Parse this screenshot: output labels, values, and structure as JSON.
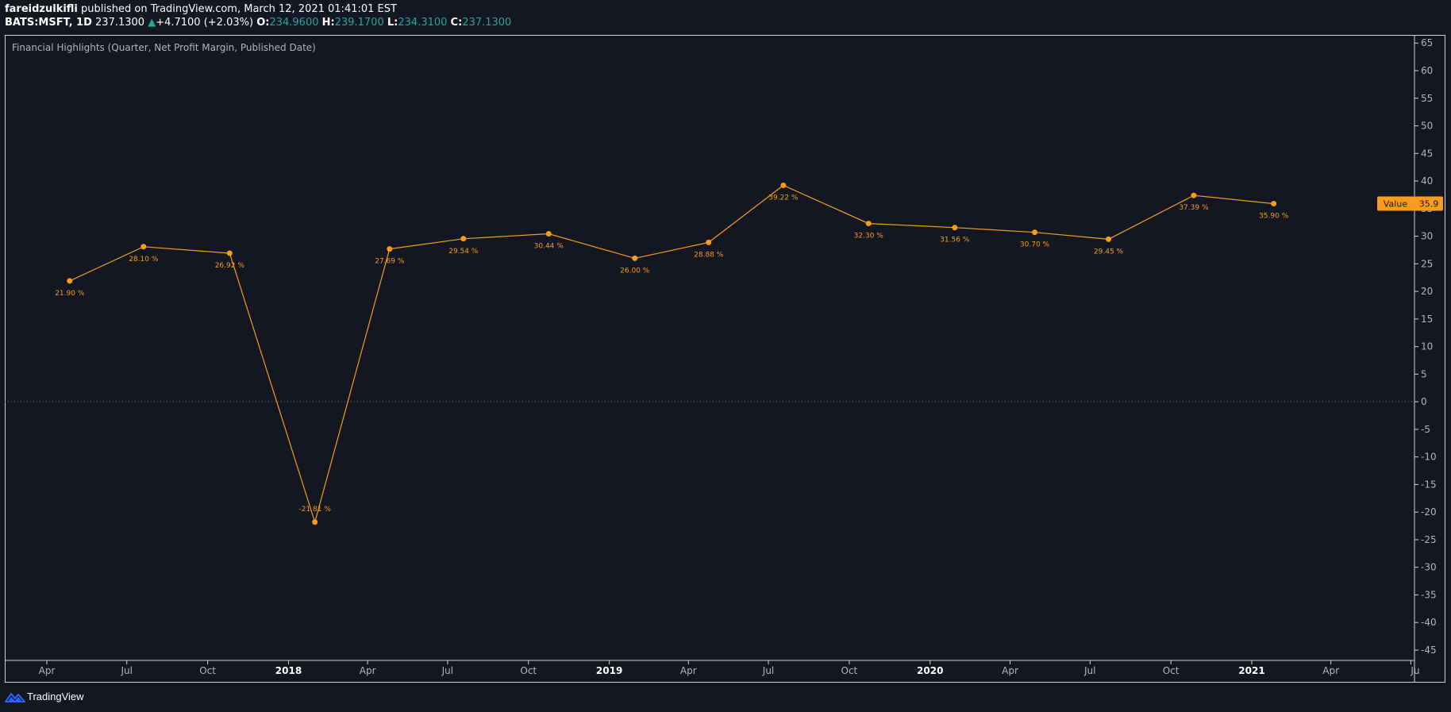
{
  "header": {
    "author": "fareidzulkifli",
    "published_text": "published on TradingView.com, March 12, 2021 01:41:01 EST",
    "symbol": "BATS:MSFT, 1D",
    "price": "237.1300",
    "change_arrow": "▲",
    "change": "+4.7100 (+2.03%)",
    "open_label": "O:",
    "open": "234.9600",
    "high_label": "H:",
    "high": "239.1700",
    "low_label": "L:",
    "low": "234.3100",
    "close_label": "C:",
    "close": "237.1300"
  },
  "footer": {
    "brand": "TradingView"
  },
  "colors": {
    "background": "#131722",
    "series": "#f89d1b",
    "axis_text": "#b2b5be",
    "frame": "#d1d4dc",
    "up": "#26a69a"
  },
  "chart_data": {
    "type": "line",
    "title": "Financial Highlights (Quarter, Net Profit Margin, Published Date)",
    "series": [
      {
        "name": "Value",
        "points": [
          {
            "x": "2017-04-27",
            "y": 21.9,
            "label": "21.90 %"
          },
          {
            "x": "2017-07-20",
            "y": 28.1,
            "label": "28.10 %"
          },
          {
            "x": "2017-10-26",
            "y": 26.92,
            "label": "26.92 %"
          },
          {
            "x": "2018-01-31",
            "y": -21.81,
            "label": "-21.81 %"
          },
          {
            "x": "2018-04-26",
            "y": 27.69,
            "label": "27.69 %"
          },
          {
            "x": "2018-07-19",
            "y": 29.54,
            "label": "29.54 %"
          },
          {
            "x": "2018-10-24",
            "y": 30.44,
            "label": "30.44 %"
          },
          {
            "x": "2019-01-30",
            "y": 26.0,
            "label": "26.00 %"
          },
          {
            "x": "2019-04-24",
            "y": 28.88,
            "label": "28.88 %"
          },
          {
            "x": "2019-07-18",
            "y": 39.22,
            "label": "39.22 %"
          },
          {
            "x": "2019-10-23",
            "y": 32.3,
            "label": "32.30 %"
          },
          {
            "x": "2020-01-29",
            "y": 31.56,
            "label": "31.56 %"
          },
          {
            "x": "2020-04-29",
            "y": 30.7,
            "label": "30.70 %"
          },
          {
            "x": "2020-07-22",
            "y": 29.45,
            "label": "29.45 %"
          },
          {
            "x": "2020-10-27",
            "y": 37.39,
            "label": "37.39 %"
          },
          {
            "x": "2021-01-26",
            "y": 35.9,
            "label": "35.90 %"
          }
        ]
      }
    ],
    "last_value": {
      "label": "Value",
      "value": "35.9"
    },
    "y_axis": {
      "range": [
        -48,
        66
      ],
      "ticks": [
        "65",
        "60",
        "55",
        "50",
        "45",
        "40",
        "35",
        "30",
        "25",
        "20",
        "15",
        "10",
        "5",
        "0",
        "-5",
        "-10",
        "-15",
        "-20",
        "-25",
        "-30",
        "-35",
        "-40",
        "-45"
      ],
      "zero_line": true,
      "side": "right"
    },
    "x_axis": {
      "range": [
        "2017-02-19",
        "2021-07-01"
      ],
      "ticks": [
        {
          "date": "2017-04-01",
          "label": "Apr",
          "bold": false
        },
        {
          "date": "2017-07-01",
          "label": "Jul",
          "bold": false
        },
        {
          "date": "2017-10-01",
          "label": "Oct",
          "bold": false
        },
        {
          "date": "2018-01-01",
          "label": "2018",
          "bold": true
        },
        {
          "date": "2018-04-01",
          "label": "Apr",
          "bold": false
        },
        {
          "date": "2018-07-01",
          "label": "Jul",
          "bold": false
        },
        {
          "date": "2018-10-01",
          "label": "Oct",
          "bold": false
        },
        {
          "date": "2019-01-01",
          "label": "2019",
          "bold": true
        },
        {
          "date": "2019-04-01",
          "label": "Apr",
          "bold": false
        },
        {
          "date": "2019-07-01",
          "label": "Jul",
          "bold": false
        },
        {
          "date": "2019-10-01",
          "label": "Oct",
          "bold": false
        },
        {
          "date": "2020-01-01",
          "label": "2020",
          "bold": true
        },
        {
          "date": "2020-04-01",
          "label": "Apr",
          "bold": false
        },
        {
          "date": "2020-07-01",
          "label": "Jul",
          "bold": false
        },
        {
          "date": "2020-10-01",
          "label": "Oct",
          "bold": false
        },
        {
          "date": "2021-01-01",
          "label": "2021",
          "bold": true
        },
        {
          "date": "2021-04-01",
          "label": "Apr",
          "bold": false
        },
        {
          "date": "2021-07-01",
          "label": "Ju",
          "bold": false
        }
      ]
    },
    "grid": false,
    "legend": "none"
  }
}
